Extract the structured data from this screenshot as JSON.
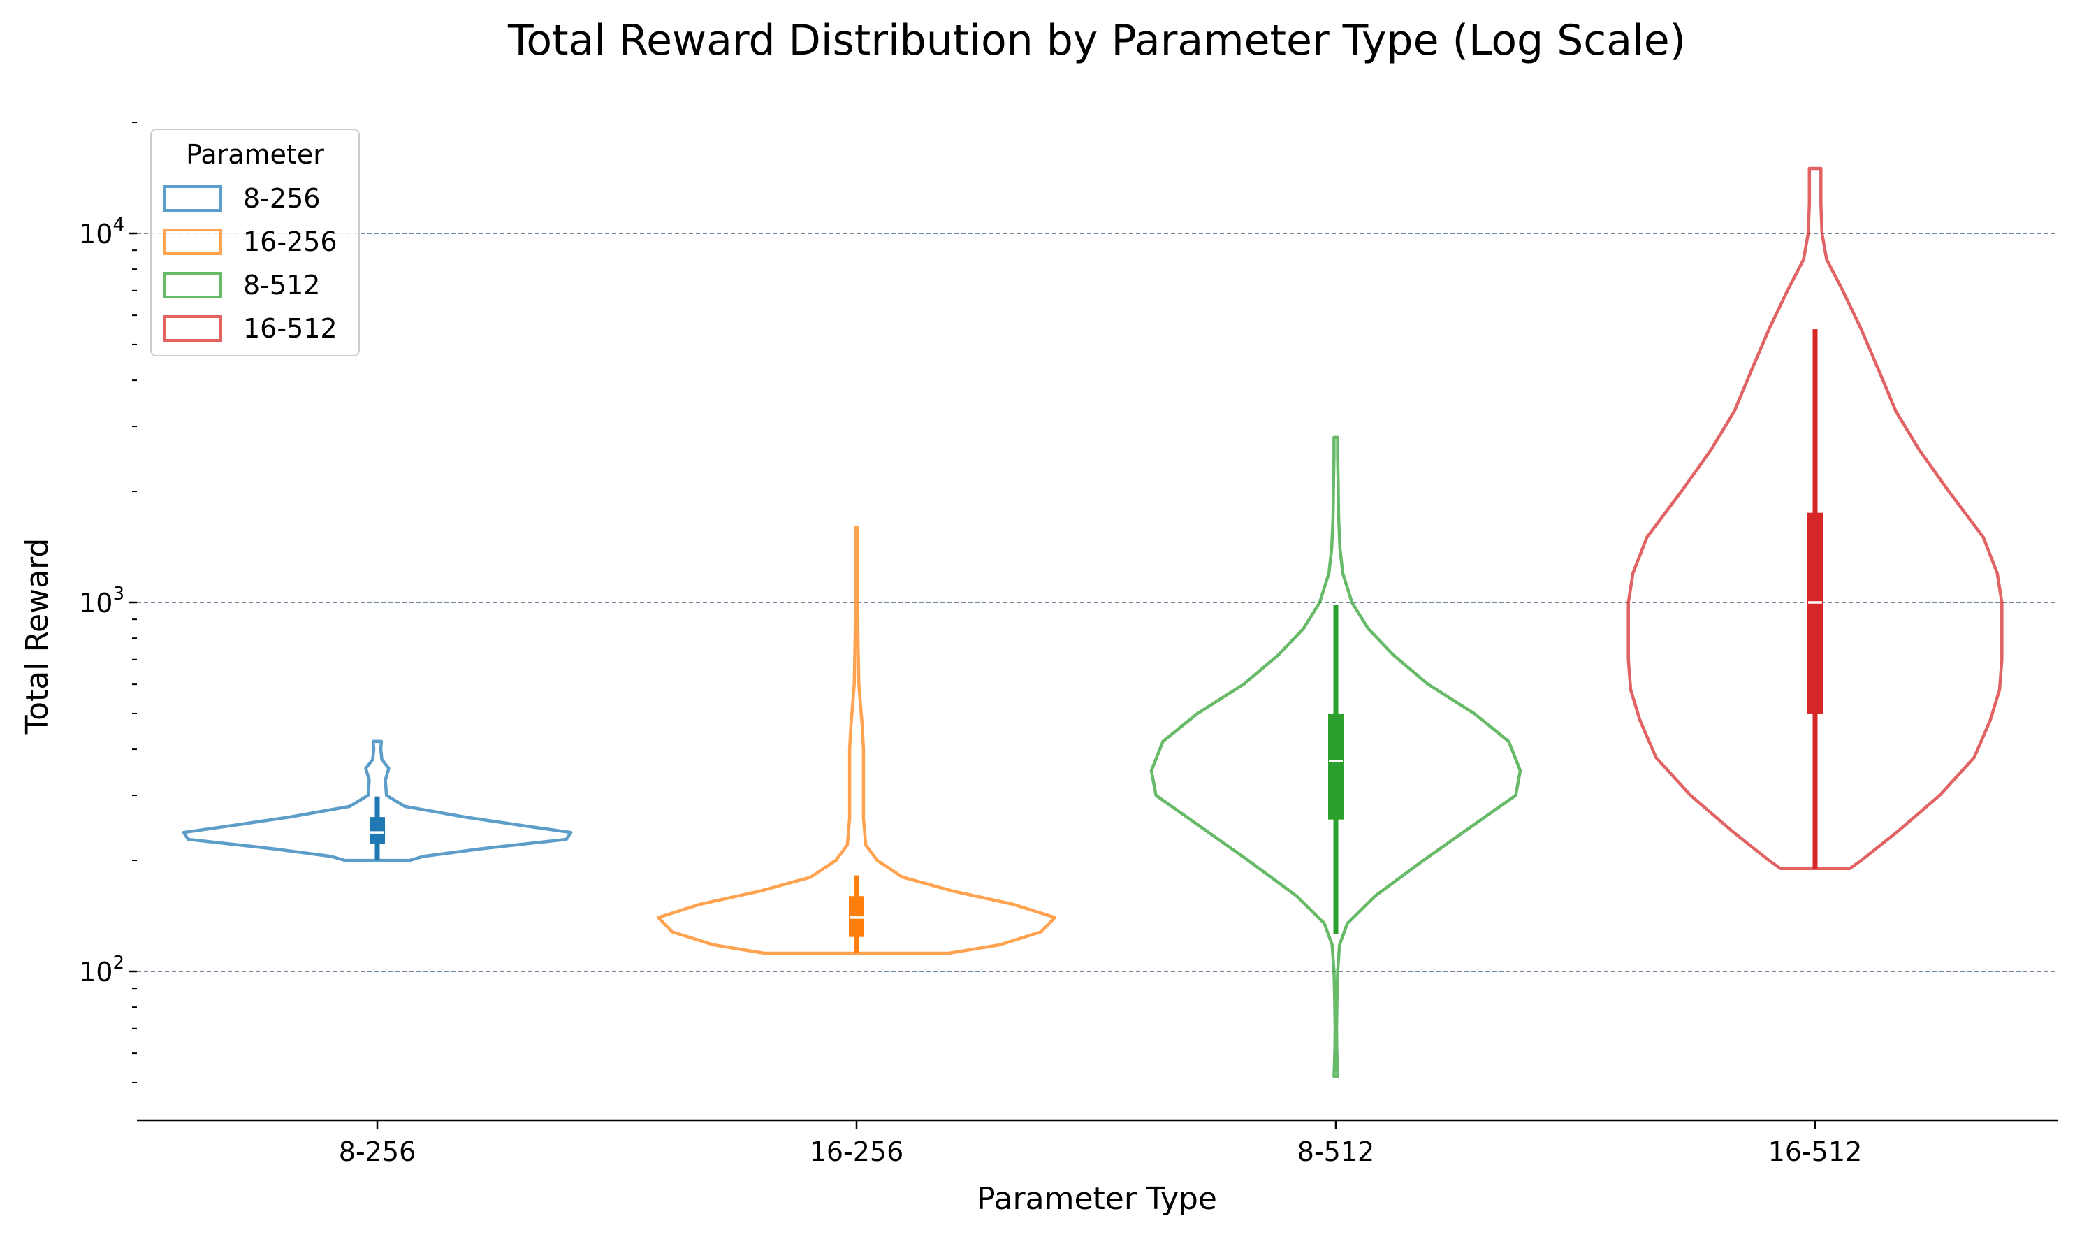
{
  "chart_data": {
    "type": "violin",
    "title": "Total Reward Distribution by Parameter Type (Log Scale)",
    "xlabel": "Parameter Type",
    "ylabel": "Total Reward",
    "y_scale": "log",
    "ylim": [
      42,
      20000
    ],
    "y_major_ticks": [
      {
        "value": 100,
        "base": "10",
        "exp": "2"
      },
      {
        "value": 1000,
        "base": "10",
        "exp": "3"
      },
      {
        "value": 10000,
        "base": "10",
        "exp": "4"
      }
    ],
    "grid": "major y, dashed",
    "categories": [
      "8-256",
      "16-256",
      "8-512",
      "16-512"
    ],
    "legend": {
      "title": "Parameter",
      "position": "top-left",
      "entries": [
        "8-256",
        "16-256",
        "8-512",
        "16-512"
      ]
    },
    "series": [
      {
        "name": "8-256",
        "color": "#1f77b4",
        "min": 200,
        "q1": 222,
        "median": 238,
        "q3": 262,
        "whisker_low": 200,
        "whisker_high": 298,
        "max": 420,
        "density": [
          [
            200,
            0.14
          ],
          [
            205,
            0.2
          ],
          [
            215,
            0.45
          ],
          [
            228,
            0.82
          ],
          [
            238,
            0.84
          ],
          [
            250,
            0.6
          ],
          [
            262,
            0.38
          ],
          [
            280,
            0.12
          ],
          [
            300,
            0.04
          ],
          [
            330,
            0.035
          ],
          [
            355,
            0.05
          ],
          [
            375,
            0.02
          ],
          [
            400,
            0.015
          ],
          [
            420,
            0.018
          ]
        ]
      },
      {
        "name": "16-256",
        "color": "#ff7f0e",
        "min": 112,
        "q1": 124,
        "median": 140,
        "q3": 160,
        "whisker_low": 112,
        "whisker_high": 182,
        "max": 1600,
        "density": [
          [
            112,
            0.4
          ],
          [
            118,
            0.62
          ],
          [
            128,
            0.8
          ],
          [
            140,
            0.86
          ],
          [
            152,
            0.68
          ],
          [
            165,
            0.42
          ],
          [
            180,
            0.2
          ],
          [
            200,
            0.09
          ],
          [
            220,
            0.04
          ],
          [
            260,
            0.03
          ],
          [
            320,
            0.03
          ],
          [
            400,
            0.03
          ],
          [
            460,
            0.025
          ],
          [
            520,
            0.018
          ],
          [
            600,
            0.01
          ],
          [
            800,
            0.006
          ],
          [
            1200,
            0.004
          ],
          [
            1600,
            0.005
          ]
        ]
      },
      {
        "name": "8-512",
        "color": "#2ca02c",
        "min": 52,
        "q1": 258,
        "median": 372,
        "q3": 500,
        "whisker_low": 126,
        "whisker_high": 985,
        "max": 2800,
        "density": [
          [
            52,
            0.008
          ],
          [
            56,
            0.006
          ],
          [
            62,
            0.004
          ],
          [
            70,
            0.003
          ],
          [
            85,
            0.005
          ],
          [
            100,
            0.008
          ],
          [
            118,
            0.016
          ],
          [
            135,
            0.05
          ],
          [
            160,
            0.17
          ],
          [
            200,
            0.38
          ],
          [
            250,
            0.6
          ],
          [
            300,
            0.78
          ],
          [
            350,
            0.8
          ],
          [
            420,
            0.75
          ],
          [
            500,
            0.6
          ],
          [
            600,
            0.4
          ],
          [
            720,
            0.25
          ],
          [
            850,
            0.14
          ],
          [
            1000,
            0.07
          ],
          [
            1200,
            0.03
          ],
          [
            1400,
            0.018
          ],
          [
            1700,
            0.012
          ],
          [
            2100,
            0.01
          ],
          [
            2500,
            0.008
          ],
          [
            2800,
            0.008
          ]
        ]
      },
      {
        "name": "16-512",
        "color": "#d62728",
        "min": 190,
        "q1": 500,
        "median": 1000,
        "q3": 1750,
        "whisker_low": 190,
        "whisker_high": 5500,
        "max": 15000,
        "density": [
          [
            190,
            0.15
          ],
          [
            200,
            0.2
          ],
          [
            240,
            0.36
          ],
          [
            300,
            0.54
          ],
          [
            380,
            0.69
          ],
          [
            480,
            0.76
          ],
          [
            580,
            0.8
          ],
          [
            700,
            0.81
          ],
          [
            850,
            0.81
          ],
          [
            1000,
            0.81
          ],
          [
            1200,
            0.79
          ],
          [
            1500,
            0.73
          ],
          [
            2000,
            0.58
          ],
          [
            2600,
            0.45
          ],
          [
            3300,
            0.35
          ],
          [
            4200,
            0.28
          ],
          [
            5500,
            0.2
          ],
          [
            7000,
            0.12
          ],
          [
            8500,
            0.05
          ],
          [
            10000,
            0.03
          ],
          [
            12000,
            0.025
          ],
          [
            15000,
            0.025
          ]
        ]
      }
    ]
  }
}
